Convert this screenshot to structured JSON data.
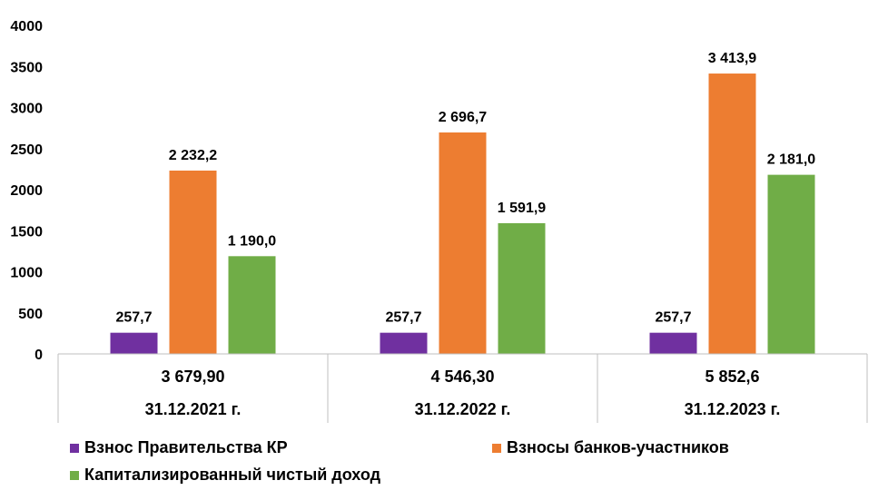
{
  "chart_data": {
    "type": "bar",
    "categories": [
      "31.12.2021 г.",
      "31.12.2022 г.",
      "31.12.2023 г."
    ],
    "totals": [
      "3 679,90",
      "4 546,30",
      "5 852,6"
    ],
    "series": [
      {
        "name": "Взнос Правительства КР",
        "color": "#7030A0",
        "values": [
          257.7,
          257.7,
          257.7
        ],
        "labels": [
          "257,7",
          "257,7",
          "257,7"
        ]
      },
      {
        "name": "Взносы банков-участников",
        "color": "#ED7D31",
        "values": [
          2232.2,
          2696.7,
          3413.9
        ],
        "labels": [
          "2 232,2",
          "2 696,7",
          "3 413,9"
        ]
      },
      {
        "name": "Капитализированный чистый доход",
        "color": "#70AD47",
        "values": [
          1190.0,
          1591.9,
          2181.0
        ],
        "labels": [
          "1 190,0",
          "1 591,9",
          "2 181,0"
        ]
      }
    ],
    "yticks": [
      "0",
      "500",
      "1000",
      "1500",
      "2000",
      "2500",
      "3000",
      "3500",
      "4000"
    ],
    "ylim": [
      0,
      4000
    ],
    "grid": false,
    "legend_position": "bottom"
  }
}
